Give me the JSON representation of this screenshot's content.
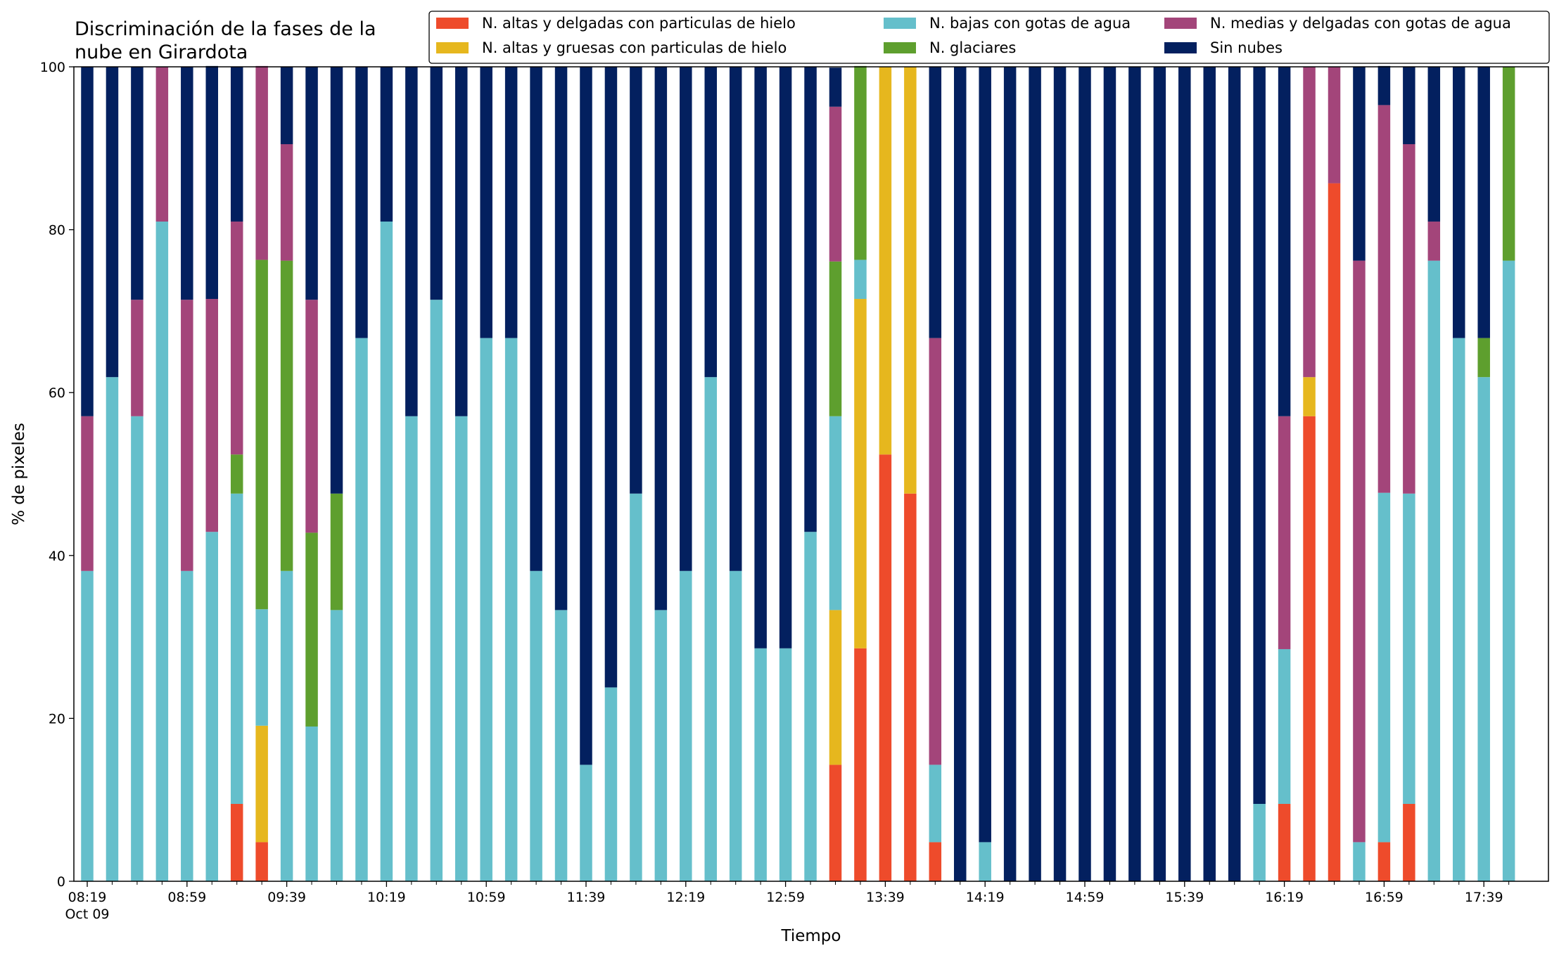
{
  "chart_data": {
    "type": "bar",
    "stacked": true,
    "title_lines": [
      "Discriminación de la fases de la",
      "nube en Girardota"
    ],
    "xlabel": "Tiempo",
    "ylabel": "% de pixeles",
    "ylim": [
      0,
      100
    ],
    "yticks": [
      0,
      20,
      40,
      60,
      80,
      100
    ],
    "grid": false,
    "legend_position": "top-right",
    "x": [
      "08:19",
      "08:29",
      "08:39",
      "08:49",
      "08:59",
      "09:09",
      "09:19",
      "09:29",
      "09:39",
      "09:49",
      "09:59",
      "10:09",
      "10:19",
      "10:29",
      "10:39",
      "10:49",
      "10:59",
      "11:09",
      "11:19",
      "11:29",
      "11:39",
      "11:49",
      "11:59",
      "12:09",
      "12:19",
      "12:29",
      "12:39",
      "12:49",
      "12:59",
      "13:09",
      "13:19",
      "13:29",
      "13:39",
      "13:49",
      "13:59",
      "14:09",
      "14:19",
      "14:29",
      "14:39",
      "14:49",
      "14:59",
      "15:09",
      "15:19",
      "15:29",
      "15:39",
      "15:49",
      "15:59",
      "16:09",
      "16:19",
      "16:29",
      "16:39",
      "16:49",
      "16:59",
      "17:09",
      "17:19",
      "17:29",
      "17:39",
      "17:49"
    ],
    "x_tick_labels": [
      {
        "index": 0,
        "label": "08:19",
        "sublabel": "Oct 09"
      },
      {
        "index": 4,
        "label": "08:59"
      },
      {
        "index": 8,
        "label": "09:39"
      },
      {
        "index": 12,
        "label": "10:19"
      },
      {
        "index": 16,
        "label": "10:59"
      },
      {
        "index": 20,
        "label": "11:39"
      },
      {
        "index": 24,
        "label": "12:19"
      },
      {
        "index": 28,
        "label": "12:59"
      },
      {
        "index": 32,
        "label": "13:39"
      },
      {
        "index": 36,
        "label": "14:19"
      },
      {
        "index": 40,
        "label": "14:59"
      },
      {
        "index": 44,
        "label": "15:39"
      },
      {
        "index": 48,
        "label": "16:19"
      },
      {
        "index": 52,
        "label": "16:59"
      },
      {
        "index": 56,
        "label": "17:39"
      }
    ],
    "series": [
      {
        "name": "N. altas y delgadas con particulas de hielo",
        "color": "#ee4b2b",
        "values": [
          0,
          0,
          0,
          0,
          0,
          0,
          9.5,
          4.8,
          0,
          0,
          0,
          0,
          0,
          0,
          0,
          0,
          0,
          0,
          0,
          0,
          0,
          0,
          0,
          0,
          0,
          0,
          0,
          0,
          0,
          0,
          14.3,
          28.6,
          52.4,
          47.6,
          4.8,
          0,
          0,
          0,
          0,
          0,
          0,
          0,
          0,
          0,
          0,
          0,
          0,
          0,
          9.5,
          57.1,
          85.7,
          0,
          4.8,
          9.5,
          0,
          0,
          0,
          0
        ]
      },
      {
        "name": "N. altas y gruesas con particulas de hielo",
        "color": "#e6b71e",
        "values": [
          0,
          0,
          0,
          0,
          0,
          0,
          0,
          14.3,
          0,
          0,
          0,
          0,
          0,
          0,
          0,
          0,
          0,
          0,
          0,
          0,
          0,
          0,
          0,
          0,
          0,
          0,
          0,
          0,
          0,
          0,
          19.0,
          42.9,
          47.6,
          52.4,
          0,
          0,
          0,
          0,
          0,
          0,
          0,
          0,
          0,
          0,
          0,
          0,
          0,
          0,
          0,
          4.8,
          0,
          0,
          0,
          0,
          0,
          0,
          0,
          0
        ]
      },
      {
        "name": "N. bajas con gotas de agua",
        "color": "#65bfcb",
        "values": [
          38.1,
          61.9,
          57.1,
          81.0,
          38.1,
          42.9,
          38.1,
          14.3,
          38.1,
          19.0,
          33.3,
          66.7,
          81.0,
          57.1,
          71.4,
          57.1,
          66.7,
          66.7,
          38.1,
          33.3,
          14.3,
          23.8,
          47.6,
          33.3,
          38.1,
          61.9,
          38.1,
          28.6,
          28.6,
          42.9,
          23.8,
          4.8,
          0,
          0,
          9.5,
          0,
          4.8,
          0,
          0,
          0,
          0,
          0,
          0,
          0,
          0,
          0,
          0,
          9.5,
          19.0,
          0,
          0,
          4.8,
          42.9,
          38.1,
          76.2,
          66.7,
          61.9,
          76.2
        ]
      },
      {
        "name": "N. glaciares",
        "color": "#5e9f2e",
        "values": [
          0,
          0,
          0,
          0,
          0,
          0,
          4.8,
          42.9,
          38.1,
          23.8,
          14.3,
          0,
          0,
          0,
          0,
          0,
          0,
          0,
          0,
          0,
          0,
          0,
          0,
          0,
          0,
          0,
          0,
          0,
          0,
          0,
          19.0,
          23.8,
          0,
          0,
          0,
          0,
          0,
          0,
          0,
          0,
          0,
          0,
          0,
          0,
          0,
          0,
          0,
          0,
          0,
          0,
          0,
          0,
          0,
          0,
          0,
          0,
          4.8,
          23.8
        ]
      },
      {
        "name": "N. medias y delgadas con gotas de agua",
        "color": "#a3457a",
        "values": [
          19.0,
          0,
          14.3,
          19.0,
          33.3,
          28.6,
          28.6,
          23.8,
          14.3,
          28.6,
          0,
          0,
          0,
          0,
          0,
          0,
          0,
          0,
          0,
          0,
          0,
          0,
          0,
          0,
          0,
          0,
          0,
          0,
          0,
          0,
          19.0,
          0,
          0,
          0,
          52.4,
          0,
          0,
          0,
          0,
          0,
          0,
          0,
          0,
          0,
          0,
          0,
          0,
          0,
          28.6,
          38.1,
          14.3,
          71.4,
          47.6,
          42.9,
          4.8,
          0,
          0,
          0
        ]
      },
      {
        "name": "Sin nubes",
        "color": "#03205f",
        "values": [
          42.9,
          38.1,
          28.6,
          0,
          28.6,
          28.6,
          19.0,
          0,
          9.5,
          28.6,
          52.4,
          33.3,
          19.0,
          42.9,
          28.6,
          42.9,
          33.3,
          33.3,
          61.9,
          66.7,
          85.7,
          76.2,
          52.4,
          66.7,
          61.9,
          38.1,
          61.9,
          71.4,
          71.4,
          57.1,
          4.8,
          0,
          0,
          0,
          33.3,
          100,
          95.2,
          100,
          100,
          100,
          100,
          100,
          100,
          100,
          100,
          100,
          100,
          90.5,
          42.9,
          0,
          0,
          23.8,
          4.8,
          9.5,
          19.0,
          33.3,
          33.3,
          0
        ]
      }
    ],
    "legend_layout": [
      [
        0,
        2,
        4
      ],
      [
        1,
        3,
        5
      ]
    ]
  }
}
